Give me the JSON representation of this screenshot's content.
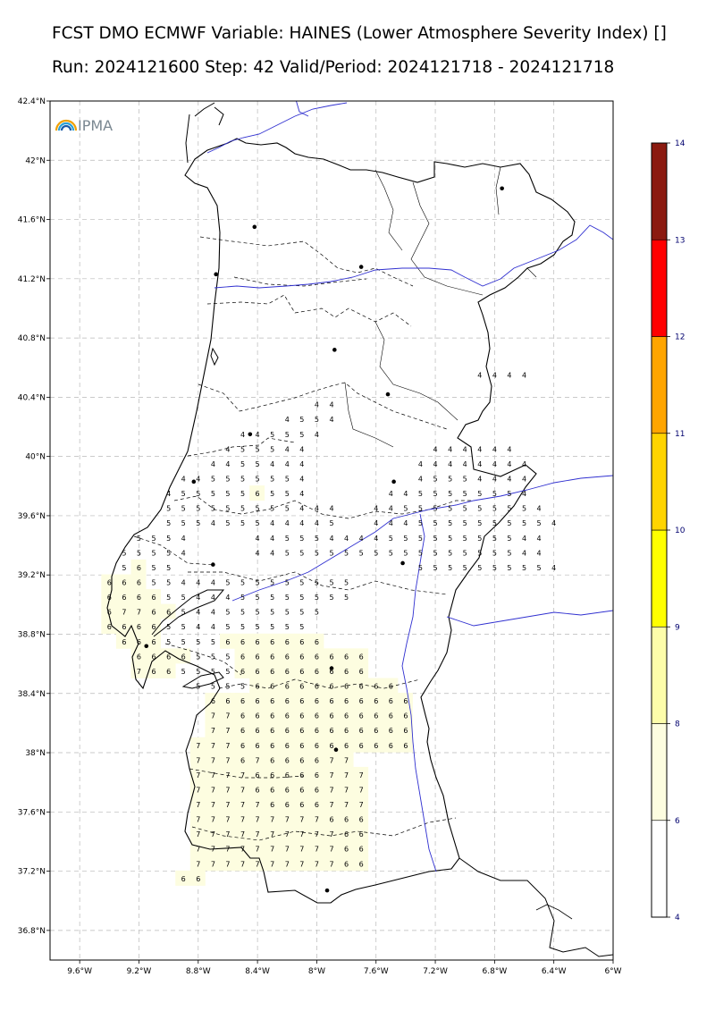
{
  "title": {
    "line1": "FCST DMO ECMWF Variable: HAINES (Lower Atmosphere Severity Index) []",
    "line2": "Run: 2024121600 Step: 42 Valid/Period: 2024121718 - 2024121718"
  },
  "logo": {
    "text": "IPMA",
    "icon": "rainbow-arc-icon"
  },
  "colors": {
    "coast": "#000000",
    "rivers": "#3030d0",
    "grid": "#b8b8b8",
    "fill_6_8": "#fdfde0"
  },
  "chart_data": {
    "type": "heatmap",
    "projection": "lat-lon",
    "lon_range": [
      -9.8,
      -6.0
    ],
    "lat_range": [
      36.6,
      42.4
    ],
    "x_ticks": [
      "9.6°W",
      "9.2°W",
      "8.8°W",
      "8.4°W",
      "8°W",
      "7.6°W",
      "7.2°W",
      "6.8°W",
      "6.4°W",
      "6°W"
    ],
    "x_tick_values": [
      -9.6,
      -9.2,
      -8.8,
      -8.4,
      -8.0,
      -7.6,
      -7.2,
      -6.8,
      -6.4,
      -6.0
    ],
    "y_ticks": [
      "42.4°N",
      "42°N",
      "41.6°N",
      "41.2°N",
      "40.8°N",
      "40.4°N",
      "40°N",
      "39.6°N",
      "39.2°N",
      "38.8°N",
      "38.4°N",
      "38°N",
      "37.6°N",
      "37.2°N",
      "36.8°N"
    ],
    "y_tick_values": [
      42.4,
      42.0,
      41.6,
      41.2,
      40.8,
      40.4,
      40.0,
      39.6,
      39.2,
      38.8,
      38.4,
      38.0,
      37.6,
      37.2,
      36.8
    ],
    "grid": true,
    "colorbar": {
      "ticks": [
        "4",
        "6",
        "8",
        "9",
        "10",
        "11",
        "12",
        "13",
        "14"
      ],
      "bins": [
        {
          "from": 4,
          "to": 6,
          "color": "#ffffff"
        },
        {
          "from": 6,
          "to": 8,
          "color": "#fdfde0"
        },
        {
          "from": 8,
          "to": 9,
          "color": "#fdfdaa"
        },
        {
          "from": 9,
          "to": 10,
          "color": "#ffff00"
        },
        {
          "from": 10,
          "to": 11,
          "color": "#ffd400"
        },
        {
          "from": 11,
          "to": 12,
          "color": "#ffa500"
        },
        {
          "from": 12,
          "to": 13,
          "color": "#ff0000"
        },
        {
          "from": 13,
          "to": 14,
          "color": "#8b1a10"
        }
      ]
    },
    "grid_values": {
      "row_lats": [
        40.35,
        40.25,
        40.15,
        40.05,
        39.95,
        39.85,
        39.75,
        39.65,
        39.55,
        39.45,
        39.35,
        39.25,
        39.15,
        39.05,
        38.95,
        38.85,
        38.75,
        38.65,
        38.55,
        38.45,
        38.35,
        38.25,
        38.15,
        38.05,
        37.95,
        37.85,
        37.75,
        37.65,
        37.55,
        37.45,
        37.35,
        37.25,
        37.15
      ],
      "rows": [
        {
          "start": -8.0,
          "vals": "44"
        },
        {
          "start": -8.2,
          "vals": "4554"
        },
        {
          "start": -8.5,
          "vals": "445554"
        },
        {
          "start": -8.6,
          "vals": "455544"
        },
        {
          "start": -8.7,
          "vals": "4455444"
        },
        {
          "start": -8.9,
          "vals": "445555554"
        },
        {
          "start": -9.0,
          "vals": "4555556554"
        },
        {
          "start": -9.0,
          "vals": "555555555444"
        },
        {
          "start": -9.0,
          "vals": "555455544445"
        },
        {
          "start": -9.2,
          "vals": "5554"
        },
        {
          "start": -9.3,
          "vals": "55554"
        },
        {
          "start": -9.3,
          "vals": "5655"
        },
        {
          "start": -9.4,
          "vals": "66655444555555555"
        },
        {
          "start": -9.4,
          "vals": "66665544455555555"
        },
        {
          "start": -9.4,
          "vals": "677665445555555"
        },
        {
          "start": -9.4,
          "vals": "66665544555555"
        },
        {
          "start": -9.3,
          "vals": "66655556666666"
        },
        {
          "start": -9.2,
          "vals": "6666555666666666"
        },
        {
          "start": -9.2,
          "vals": "7665555666666666"
        },
        {
          "start": -8.8,
          "vals": "55556666666666"
        },
        {
          "start": -8.7,
          "vals": "66666666666666"
        },
        {
          "start": -8.7,
          "vals": "77666666666666"
        },
        {
          "start": -8.7,
          "vals": "77666666666666"
        },
        {
          "start": -8.8,
          "vals": "777666666666666"
        },
        {
          "start": -8.8,
          "vals": "77767666677"
        },
        {
          "start": -8.8,
          "vals": "777766666777"
        },
        {
          "start": -8.8,
          "vals": "777766666777"
        },
        {
          "start": -8.8,
          "vals": "777776666777"
        },
        {
          "start": -8.8,
          "vals": "777777777666"
        },
        {
          "start": -8.8,
          "vals": "777777777766"
        },
        {
          "start": -8.8,
          "vals": "777777777766"
        },
        {
          "start": -8.8,
          "vals": "777777777766"
        },
        {
          "start": -8.9,
          "vals": "66"
        }
      ],
      "east_rows": [
        {
          "lat": 40.55,
          "start": -6.9,
          "vals": "4444"
        },
        {
          "lat": 40.05,
          "start": -7.2,
          "vals": "444444"
        },
        {
          "lat": 39.95,
          "start": -7.3,
          "vals": "44444444"
        },
        {
          "lat": 39.85,
          "start": -7.3,
          "vals": "45554444"
        },
        {
          "lat": 39.75,
          "start": -7.5,
          "vals": "4455555554"
        },
        {
          "lat": 39.65,
          "start": -7.6,
          "vals": "445555555554"
        },
        {
          "lat": 39.55,
          "start": -7.6,
          "vals": "4445555555554"
        },
        {
          "lat": 39.45,
          "start": -8.4,
          "vals": "44555444455555555544"
        },
        {
          "lat": 39.35,
          "start": -8.4,
          "vals": "44555555555555555544"
        },
        {
          "lat": 39.25,
          "start": -7.3,
          "vals": "5555555554"
        }
      ]
    },
    "cities": [
      [
        -6.75,
        41.81
      ],
      [
        -7.7,
        41.28
      ],
      [
        -8.42,
        41.55
      ],
      [
        -8.68,
        41.23
      ],
      [
        -7.88,
        40.72
      ],
      [
        -7.52,
        40.42
      ],
      [
        -8.45,
        40.15
      ],
      [
        -8.83,
        39.83
      ],
      [
        -7.48,
        39.83
      ],
      [
        -8.7,
        39.27
      ],
      [
        -7.42,
        39.28
      ],
      [
        -9.15,
        38.72
      ],
      [
        -7.9,
        38.57
      ],
      [
        -7.87,
        38.02
      ],
      [
        -7.93,
        37.07
      ]
    ],
    "tick_count_note": ""
  }
}
